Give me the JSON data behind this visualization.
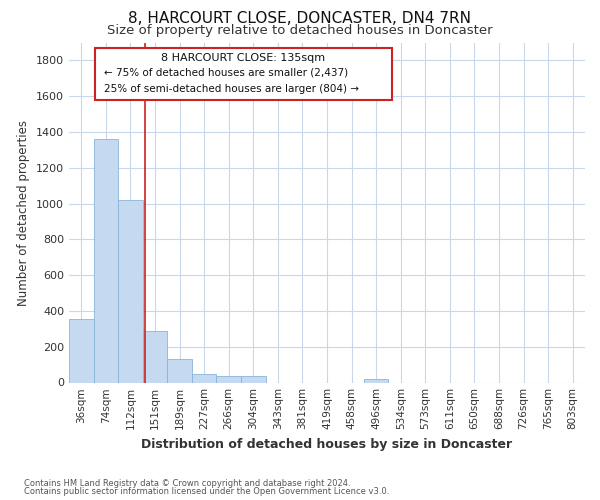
{
  "title": "8, HARCOURT CLOSE, DONCASTER, DN4 7RN",
  "subtitle": "Size of property relative to detached houses in Doncaster",
  "xlabel": "Distribution of detached houses by size in Doncaster",
  "ylabel": "Number of detached properties",
  "footnote1": "Contains HM Land Registry data © Crown copyright and database right 2024.",
  "footnote2": "Contains public sector information licensed under the Open Government Licence v3.0.",
  "annotation_title": "8 HARCOURT CLOSE: 135sqm",
  "annotation_line1": "← 75% of detached houses are smaller (2,437)",
  "annotation_line2": "25% of semi-detached houses are larger (804) →",
  "bar_color": "#c5daf0",
  "bar_edge_color": "#8ab4d8",
  "vline_color": "#cc2222",
  "categories": [
    "36sqm",
    "74sqm",
    "112sqm",
    "151sqm",
    "189sqm",
    "227sqm",
    "266sqm",
    "304sqm",
    "343sqm",
    "381sqm",
    "419sqm",
    "458sqm",
    "496sqm",
    "534sqm",
    "573sqm",
    "611sqm",
    "650sqm",
    "688sqm",
    "726sqm",
    "765sqm",
    "803sqm"
  ],
  "values": [
    355,
    1360,
    1020,
    290,
    130,
    45,
    35,
    35,
    0,
    0,
    0,
    0,
    20,
    0,
    0,
    0,
    0,
    0,
    0,
    0,
    0
  ],
  "ylim": [
    0,
    1900
  ],
  "yticks": [
    0,
    200,
    400,
    600,
    800,
    1000,
    1200,
    1400,
    1600,
    1800
  ],
  "vline_x_idx": 2.58,
  "bg_color": "#ffffff",
  "plot_bg_color": "#ffffff",
  "grid_color": "#c8d8ea",
  "title_fontsize": 11,
  "subtitle_fontsize": 9.5
}
